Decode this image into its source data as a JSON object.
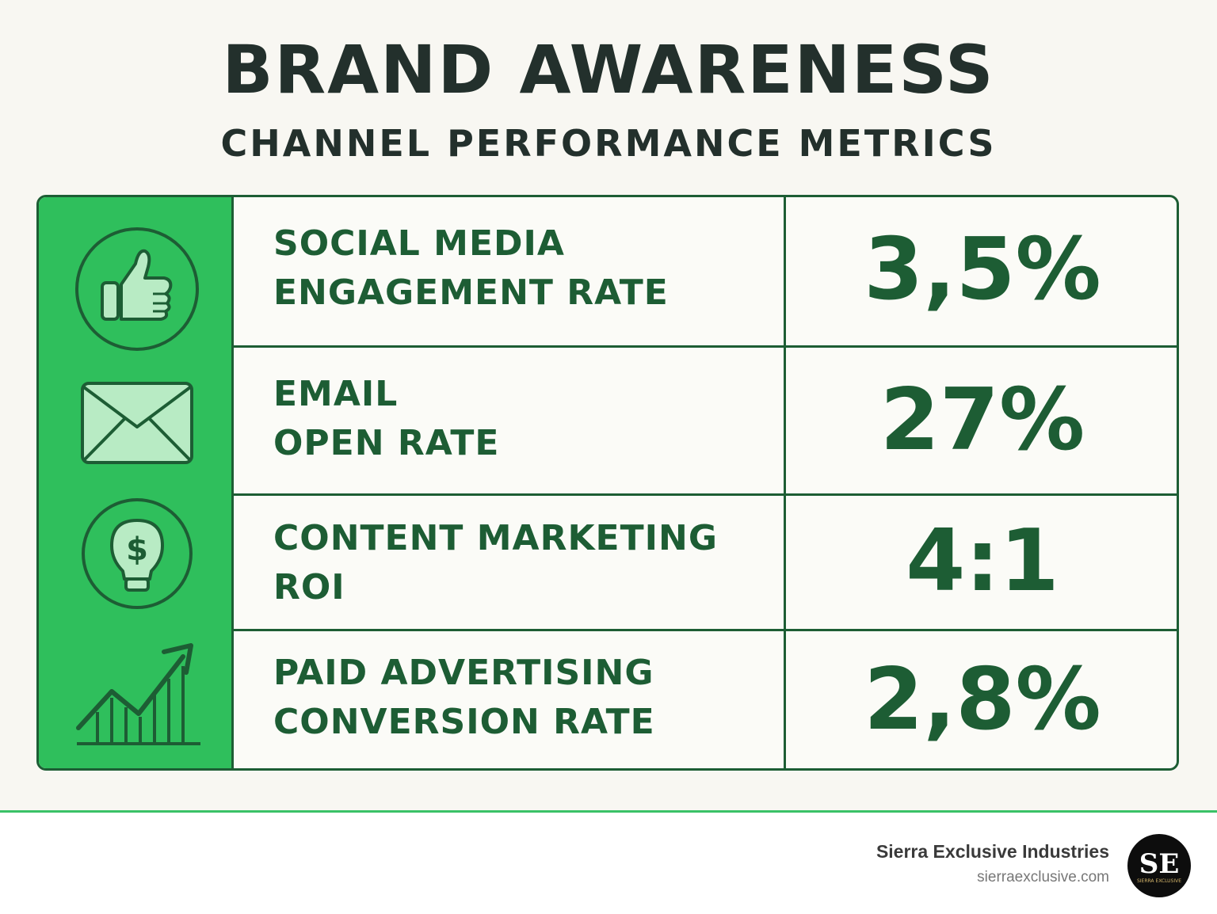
{
  "header": {
    "title": "BRAND AWARENESS",
    "subtitle": "CHANNEL PERFORMANCE METRICS"
  },
  "metrics": [
    {
      "icon": "thumbs-up-icon",
      "label_line1": "SOCIAL MEDIA",
      "label_line2": "ENGAGEMENT RATE",
      "value": "3,5%"
    },
    {
      "icon": "envelope-icon",
      "label_line1": "EMAIL",
      "label_line2": "OPEN RATE",
      "value": "27%"
    },
    {
      "icon": "dollar-lightbulb-icon",
      "label_line1": "CONTENT MARKETING",
      "label_line2": "ROI",
      "value": "4:1"
    },
    {
      "icon": "growth-chart-icon",
      "label_line1": "PAID ADVERTISING",
      "label_line2": "CONVERSION RATE",
      "value": "2,8%"
    }
  ],
  "footer": {
    "company": "Sierra Exclusive Industries",
    "website": "sierraexclusive.com",
    "logo_text": "SE",
    "logo_subtext": "SIERRA EXCLUSIVE"
  },
  "colors": {
    "background": "#f8f7f2",
    "accent_green": "#2fbf5c",
    "dark_green": "#1d5d34",
    "title_text": "#23302c"
  }
}
